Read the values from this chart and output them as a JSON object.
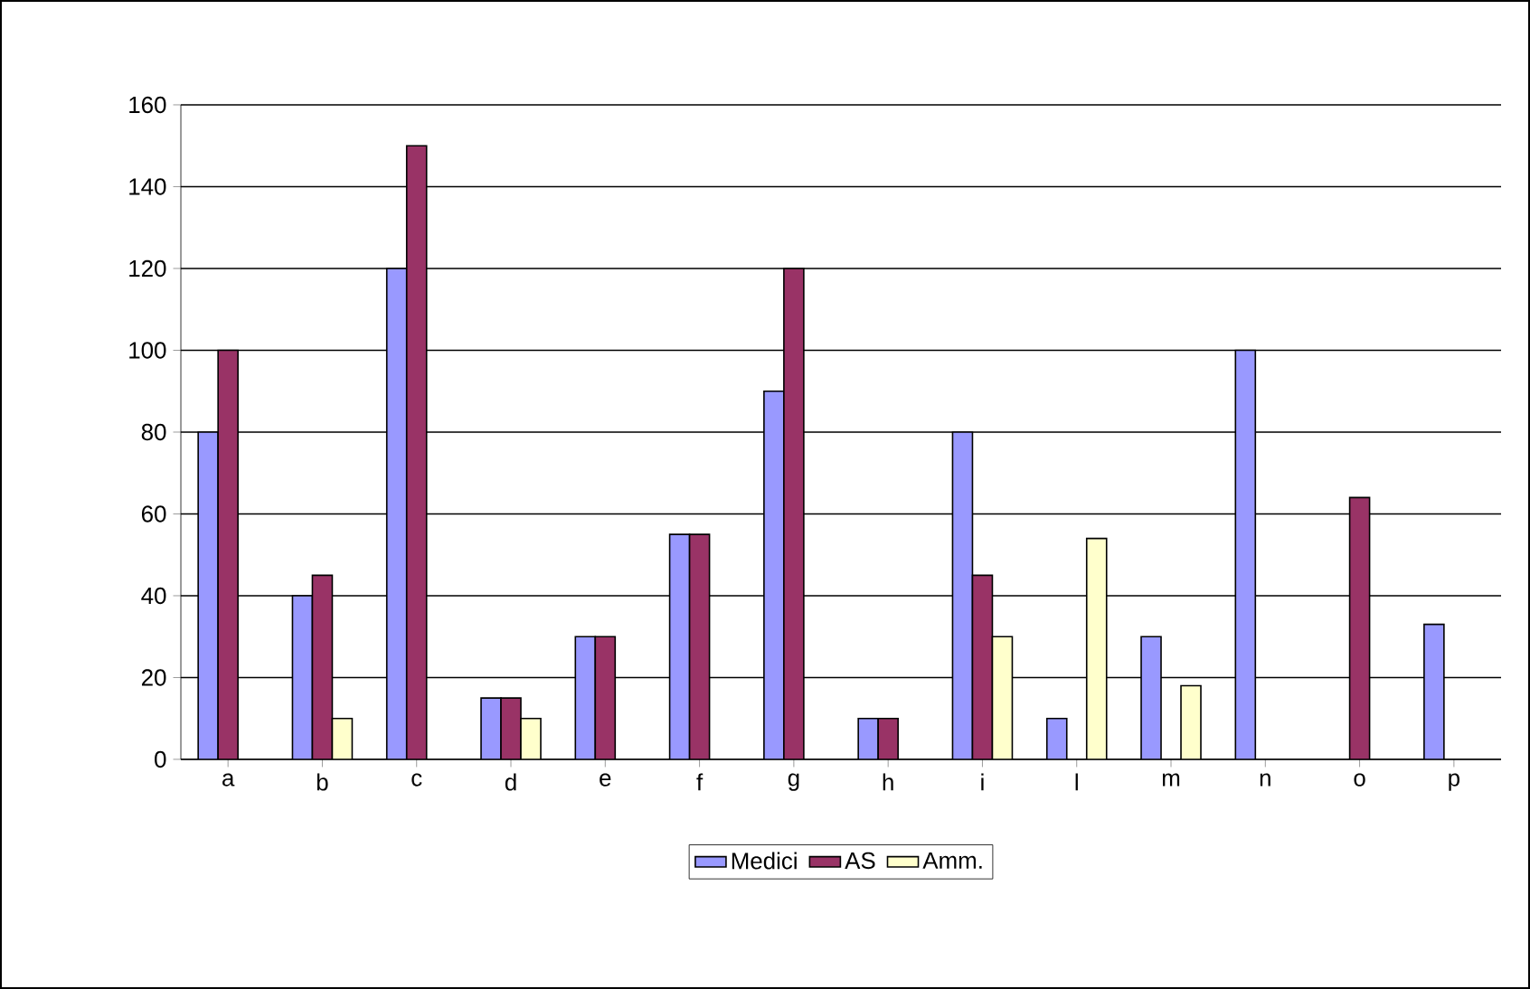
{
  "chart_data": {
    "type": "bar",
    "categories": [
      "a",
      "b",
      "c",
      "d",
      "e",
      "f",
      "g",
      "h",
      "i",
      "l",
      "m",
      "n",
      "o",
      "p"
    ],
    "series": [
      {
        "name": "Medici",
        "color": "#9999ff",
        "values": [
          80,
          40,
          120,
          15,
          30,
          55,
          90,
          10,
          80,
          10,
          30,
          100,
          null,
          33
        ]
      },
      {
        "name": "AS",
        "color": "#993366",
        "values": [
          100,
          45,
          150,
          15,
          30,
          55,
          120,
          10,
          45,
          null,
          null,
          null,
          64,
          null
        ]
      },
      {
        "name": "Amm.",
        "color": "#ffffcc",
        "values": [
          null,
          10,
          null,
          10,
          null,
          null,
          null,
          null,
          30,
          54,
          18,
          null,
          null,
          null
        ]
      }
    ],
    "ylim": [
      0,
      160
    ],
    "yticks": [
      0,
      20,
      40,
      60,
      80,
      100,
      120,
      140,
      160
    ],
    "grid": "y",
    "legend": "bottom"
  }
}
